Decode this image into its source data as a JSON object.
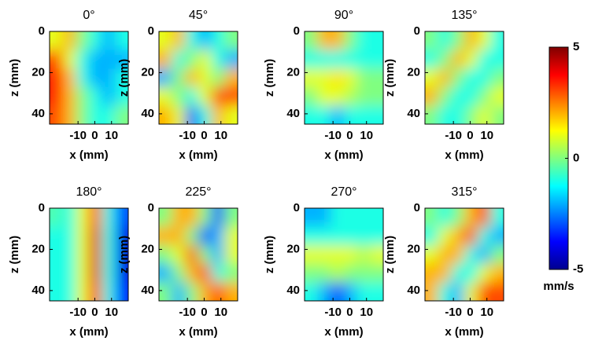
{
  "chart_data": [
    {
      "type": "heatmap",
      "title": "0°",
      "xlabel": "x (mm)",
      "ylabel": "z (mm)",
      "xlim": [
        -27,
        20
      ],
      "ylim": [
        45,
        0
      ],
      "xticks": [
        -10,
        0,
        10
      ],
      "yticks": [
        0,
        20,
        40
      ],
      "values": [
        [
          1,
          2,
          0,
          -1,
          -2,
          -1
        ],
        [
          3,
          1,
          -1,
          -2,
          -2,
          -2
        ],
        [
          3.5,
          2,
          -1,
          -2,
          -2,
          -1
        ],
        [
          3.5,
          2,
          0,
          -1,
          -2,
          -1
        ],
        [
          3,
          2,
          0,
          -1,
          -1,
          0
        ]
      ]
    },
    {
      "type": "heatmap",
      "title": "45°",
      "xlabel": "x (mm)",
      "ylabel": "z (mm)",
      "xlim": [
        -27,
        20
      ],
      "ylim": [
        45,
        0
      ],
      "xticks": [
        -10,
        0,
        10
      ],
      "yticks": [
        0,
        20,
        40
      ],
      "values": [
        [
          1,
          2,
          -1,
          -2,
          -1,
          0
        ],
        [
          2,
          -1,
          0,
          1,
          -1,
          -2
        ],
        [
          -2,
          0,
          2,
          1,
          0,
          2
        ],
        [
          1,
          0,
          -1,
          1,
          3,
          3
        ],
        [
          2,
          1,
          -3,
          -1,
          2,
          1
        ]
      ]
    },
    {
      "type": "heatmap",
      "title": "90°",
      "xlabel": "x (mm)",
      "ylabel": "z (mm)",
      "xlim": [
        -27,
        20
      ],
      "ylim": [
        45,
        0
      ],
      "xticks": [
        -10,
        0,
        10
      ],
      "yticks": [
        0,
        20,
        40
      ],
      "values": [
        [
          0,
          2,
          2,
          0,
          -1,
          -1
        ],
        [
          -1,
          -1,
          -1,
          -1,
          -1,
          -1
        ],
        [
          1,
          1,
          1.5,
          1,
          0,
          0
        ],
        [
          0,
          1,
          1,
          0.5,
          0,
          0
        ],
        [
          -1,
          -1,
          -2,
          -1,
          -1,
          -1
        ]
      ]
    },
    {
      "type": "heatmap",
      "title": "135°",
      "xlabel": "x (mm)",
      "ylabel": "z (mm)",
      "xlim": [
        -27,
        20
      ],
      "ylim": [
        45,
        0
      ],
      "xticks": [
        -10,
        0,
        10
      ],
      "yticks": [
        0,
        20,
        40
      ],
      "values": [
        [
          0,
          -1,
          0,
          2,
          1,
          -1
        ],
        [
          -1,
          0,
          2,
          1,
          -1,
          -1
        ],
        [
          1,
          2,
          0,
          -1,
          -1,
          0
        ],
        [
          2,
          0,
          -1,
          -1,
          0,
          1
        ],
        [
          0,
          -1,
          -1,
          0,
          1,
          0
        ]
      ]
    },
    {
      "type": "heatmap",
      "title": "180°",
      "xlabel": "x (mm)",
      "ylabel": "z (mm)",
      "xlim": [
        -27,
        20
      ],
      "ylim": [
        45,
        0
      ],
      "xticks": [
        -10,
        0,
        10
      ],
      "yticks": [
        0,
        20,
        40
      ],
      "values": [
        [
          -0.5,
          -1,
          1,
          3,
          -1,
          -3
        ],
        [
          -1,
          -1,
          1,
          4,
          -1,
          -4
        ],
        [
          -1,
          -1,
          1,
          4,
          -1,
          -4
        ],
        [
          -1,
          -1,
          1,
          4,
          -1,
          -4
        ],
        [
          -1,
          -1,
          1,
          3.5,
          -1,
          -3.5
        ]
      ]
    },
    {
      "type": "heatmap",
      "title": "225°",
      "xlabel": "x (mm)",
      "ylabel": "z (mm)",
      "xlim": [
        -27,
        20
      ],
      "ylim": [
        45,
        0
      ],
      "xticks": [
        -10,
        0,
        10
      ],
      "yticks": [
        0,
        20,
        40
      ],
      "values": [
        [
          0,
          2,
          2,
          0,
          -3,
          0
        ],
        [
          2,
          2,
          0,
          -3,
          -2,
          1
        ],
        [
          0,
          1,
          3,
          0,
          -2,
          1
        ],
        [
          -2,
          0,
          2,
          3,
          -1,
          0
        ],
        [
          0,
          -2,
          0,
          2,
          3,
          2
        ]
      ]
    },
    {
      "type": "heatmap",
      "title": "270°",
      "xlabel": "x (mm)",
      "ylabel": "z (mm)",
      "xlim": [
        -27,
        20
      ],
      "ylim": [
        45,
        0
      ],
      "xticks": [
        -10,
        0,
        10
      ],
      "yticks": [
        0,
        20,
        40
      ],
      "values": [
        [
          -2,
          -2,
          -1,
          -1,
          -1,
          -1
        ],
        [
          -1,
          -1,
          -1,
          -1,
          -1,
          -1
        ],
        [
          1,
          1,
          1,
          1,
          0.5,
          1
        ],
        [
          0,
          0,
          0.5,
          0,
          0,
          0
        ],
        [
          -1,
          -2,
          -3,
          -2,
          -1,
          -1
        ]
      ]
    },
    {
      "type": "heatmap",
      "title": "315°",
      "xlabel": "x (mm)",
      "ylabel": "z (mm)",
      "xlim": [
        -27,
        20
      ],
      "ylim": [
        45,
        0
      ],
      "xticks": [
        -10,
        0,
        10
      ],
      "yticks": [
        0,
        20,
        40
      ],
      "values": [
        [
          0,
          -1,
          0,
          2,
          3,
          -1
        ],
        [
          -1,
          1,
          2,
          3,
          -1,
          -2
        ],
        [
          1,
          2,
          2,
          -1,
          -2,
          0
        ],
        [
          2,
          2,
          -1,
          -1,
          1,
          2
        ],
        [
          2,
          -1,
          -2,
          1,
          3,
          3
        ]
      ]
    },
    {
      "type": "colorbar",
      "label": "mm/s",
      "clim": [
        -5,
        5
      ],
      "ticks": [
        5,
        0,
        -5
      ]
    }
  ]
}
